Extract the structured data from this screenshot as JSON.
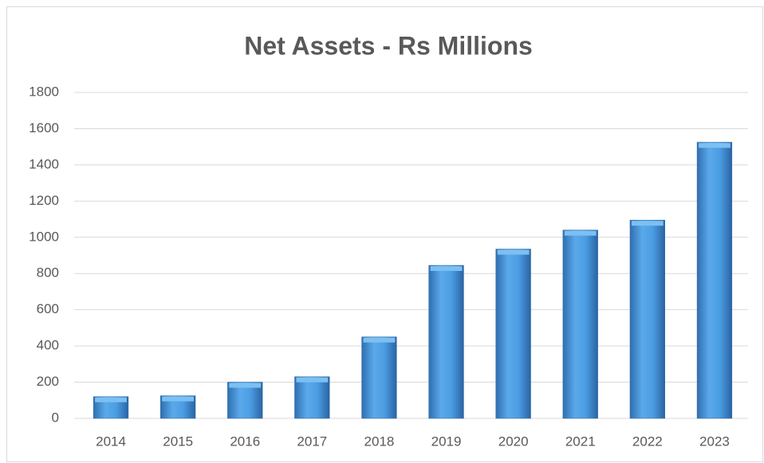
{
  "chart_data": {
    "type": "bar",
    "title": "Net Assets - Rs Millions",
    "categories": [
      "2014",
      "2015",
      "2016",
      "2017",
      "2018",
      "2019",
      "2020",
      "2021",
      "2022",
      "2023"
    ],
    "values": [
      120,
      125,
      200,
      230,
      450,
      845,
      935,
      1040,
      1095,
      1525
    ],
    "color": "#3d8fd6",
    "ylim": [
      0,
      1800
    ],
    "yticks": [
      0,
      200,
      400,
      600,
      800,
      1000,
      1200,
      1400,
      1600,
      1800
    ],
    "grid": true
  }
}
